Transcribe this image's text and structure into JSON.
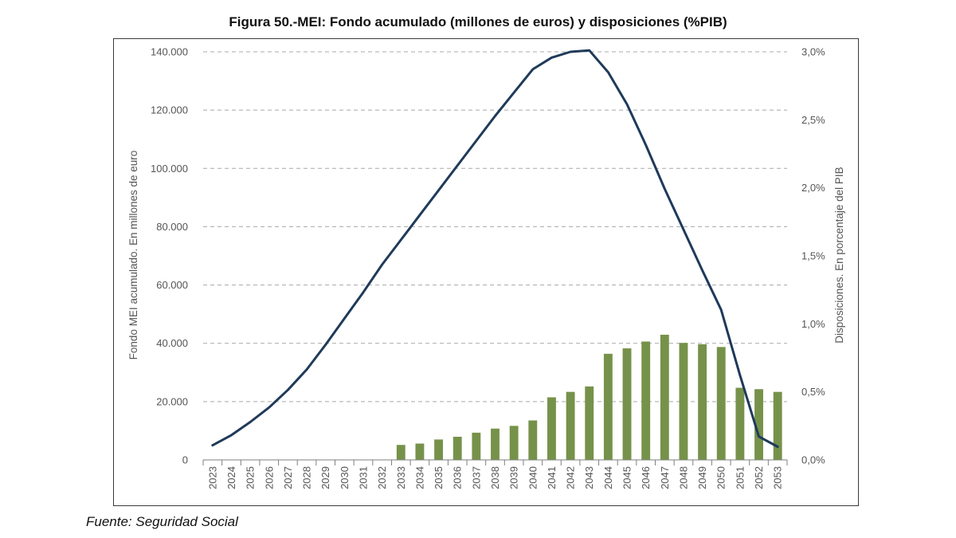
{
  "title": "Figura 50.-MEI: Fondo acumulado (millones de euros) y disposiciones (%PIB)",
  "source": "Fuente: Seguridad Social",
  "colors": {
    "line": "#1f3a5a",
    "bar": "#76924a",
    "grid": "#a8a8a8",
    "axis": "#7f7f7f",
    "text": "#555555"
  },
  "chart_data": {
    "type": "bar+line",
    "title": "Figura 50.-MEI: Fondo acumulado (millones de euros) y disposiciones (%PIB)",
    "ylabel_left": "Fondo MEI acumulado. En millones de euro",
    "ylabel_right": "Disposiciones. En porcentaje del PIB",
    "ylim_left": [
      0,
      140000
    ],
    "ylim_right": [
      0,
      3.0
    ],
    "yticks_left": [
      "0",
      "20.000",
      "40.000",
      "60.000",
      "80.000",
      "100.000",
      "120.000",
      "140.000"
    ],
    "yticks_right": [
      "0,0%",
      "0,5%",
      "1,0%",
      "1,5%",
      "2,0%",
      "2,5%",
      "3,0%"
    ],
    "grid": true,
    "categories": [
      "2023",
      "2024",
      "2025",
      "2026",
      "2027",
      "2028",
      "2029",
      "2030",
      "2031",
      "2032",
      "2033",
      "2034",
      "2035",
      "2036",
      "2037",
      "2038",
      "2039",
      "2040",
      "2041",
      "2042",
      "2043",
      "2044",
      "2045",
      "2046",
      "2047",
      "2048",
      "2049",
      "2050",
      "2051",
      "2052",
      "2053"
    ],
    "series": [
      {
        "name": "Disposiciones (%PIB)",
        "type": "bar",
        "axis": "right",
        "values": [
          0,
          0,
          0,
          0,
          0,
          0,
          0,
          0,
          0,
          0,
          0.11,
          0.12,
          0.15,
          0.17,
          0.2,
          0.23,
          0.25,
          0.29,
          0.46,
          0.5,
          0.54,
          0.78,
          0.82,
          0.87,
          0.92,
          0.86,
          0.85,
          0.83,
          0.53,
          0.52,
          0.5
        ]
      },
      {
        "name": "Fondo MEI acumulado (millones de euros)",
        "type": "line",
        "axis": "left",
        "values": [
          5000,
          8500,
          13000,
          18000,
          24000,
          31000,
          39500,
          48500,
          57500,
          67000,
          75500,
          84000,
          92500,
          101000,
          109500,
          118000,
          126000,
          134000,
          138000,
          140000,
          140500,
          133000,
          122000,
          108000,
          93000,
          79000,
          65000,
          51500,
          29000,
          8000,
          4500
        ]
      }
    ]
  }
}
